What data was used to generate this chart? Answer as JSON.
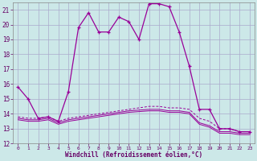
{
  "xlabel": "Windchill (Refroidissement éolien,°C)",
  "background_color": "#cce8e8",
  "grid_color": "#aaaacc",
  "line_color": "#990099",
  "ylim": [
    12,
    21.5
  ],
  "xlim": [
    -0.5,
    23.5
  ],
  "yticks": [
    12,
    13,
    14,
    15,
    16,
    17,
    18,
    19,
    20,
    21
  ],
  "xticks": [
    0,
    1,
    2,
    3,
    4,
    5,
    6,
    7,
    8,
    9,
    10,
    11,
    12,
    13,
    14,
    15,
    16,
    17,
    18,
    19,
    20,
    21,
    22,
    23
  ],
  "series1": [
    15.8,
    15.0,
    13.7,
    13.8,
    13.5,
    15.5,
    19.8,
    20.8,
    19.5,
    19.5,
    20.5,
    20.2,
    19.0,
    21.4,
    21.4,
    21.2,
    19.5,
    17.2,
    14.3,
    14.3,
    13.0,
    13.0,
    12.8,
    12.8
  ],
  "series2": [
    13.8,
    13.7,
    13.7,
    13.8,
    13.5,
    13.7,
    13.8,
    13.9,
    14.0,
    14.1,
    14.2,
    14.3,
    14.4,
    14.5,
    14.5,
    14.4,
    14.4,
    14.3,
    13.7,
    13.5,
    13.0,
    13.0,
    12.8,
    12.8
  ],
  "series3": [
    13.7,
    13.6,
    13.6,
    13.7,
    13.4,
    13.6,
    13.7,
    13.8,
    13.9,
    14.0,
    14.1,
    14.2,
    14.25,
    14.3,
    14.3,
    14.2,
    14.2,
    14.1,
    13.4,
    13.2,
    12.8,
    12.8,
    12.7,
    12.7
  ],
  "series4": [
    13.6,
    13.5,
    13.5,
    13.6,
    13.3,
    13.5,
    13.6,
    13.7,
    13.8,
    13.9,
    14.0,
    14.1,
    14.15,
    14.2,
    14.2,
    14.1,
    14.1,
    14.0,
    13.3,
    13.1,
    12.7,
    12.7,
    12.6,
    12.6
  ]
}
